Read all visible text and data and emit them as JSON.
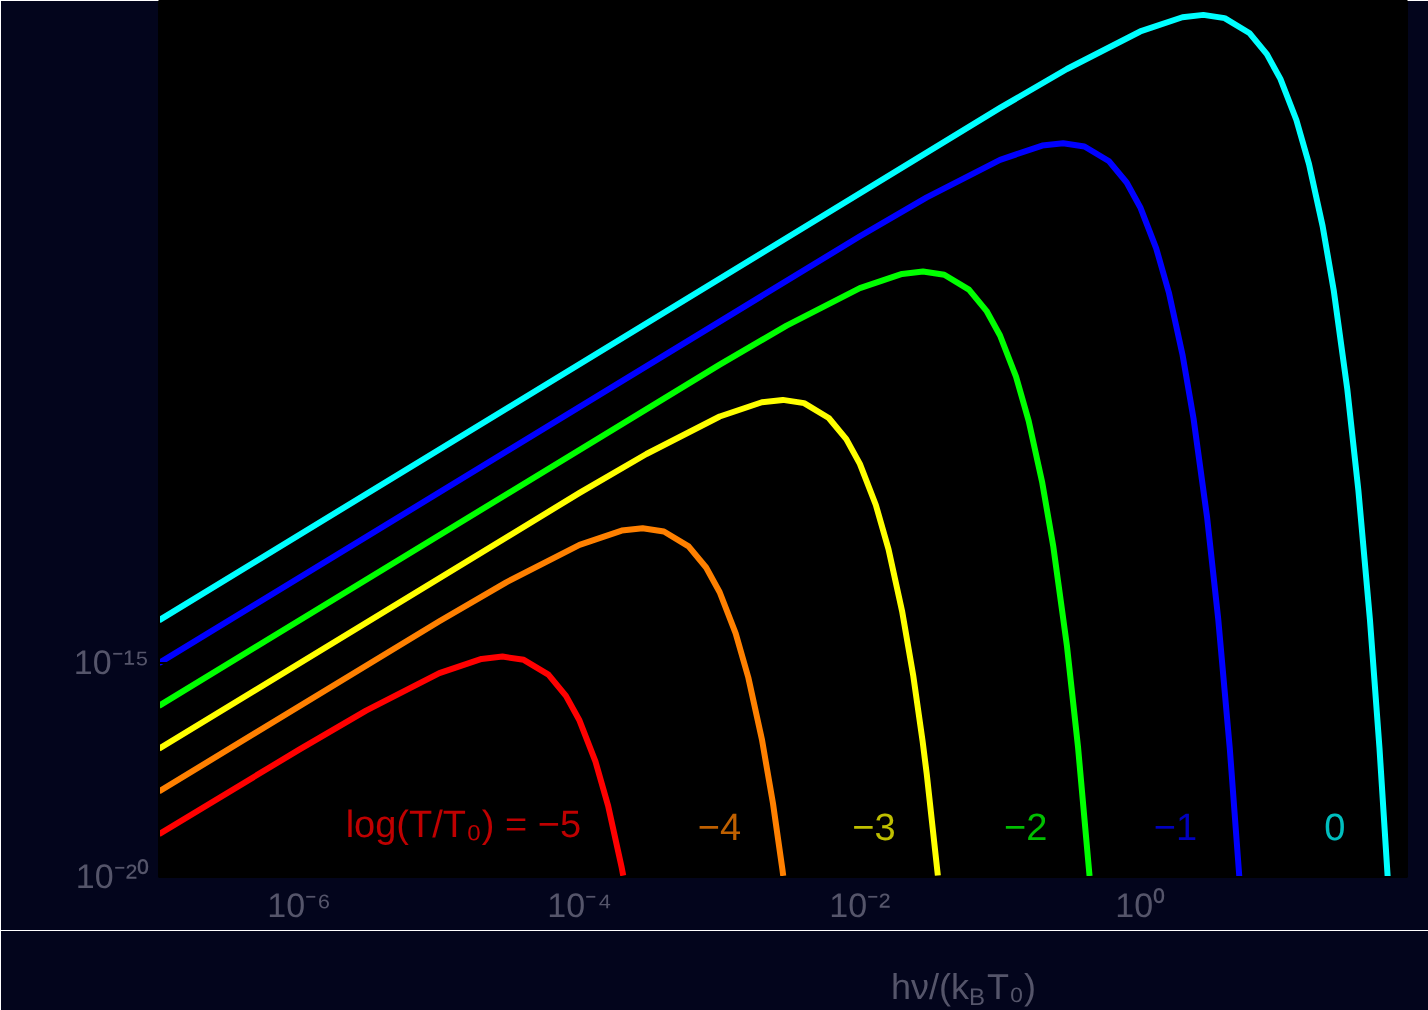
{
  "chart_data": {
    "type": "line",
    "xlabel": "hν/(k$_{B}$T₀)",
    "log": "xy",
    "legend": false,
    "grid": false,
    "marker": "none",
    "line_style": "solid",
    "xlim": [
      1e-07,
      80
    ],
    "ylim": [
      1e-20,
      3
    ],
    "xticks": [
      {
        "value": 1e-06,
        "label": "10⁻⁶"
      },
      {
        "value": 1e-05,
        "label": null
      },
      {
        "value": 0.0001,
        "label": "10⁻⁴"
      },
      {
        "value": 0.001,
        "label": null
      },
      {
        "value": 0.01,
        "label": "10⁻²"
      },
      {
        "value": 0.1,
        "label": null
      },
      {
        "value": 1,
        "label": "10⁰"
      },
      {
        "value": 10,
        "label": null
      }
    ],
    "yticks": [
      {
        "value": 1e-20,
        "label": "10⁻²⁰"
      },
      {
        "value": 1e-15,
        "label": "10⁻¹⁵"
      }
    ],
    "series": [
      {
        "name": "log(T/T₀) = −5",
        "color": "#ff0000",
        "x": [
          1e-07,
          1e-06,
          3e-06,
          1e-05,
          2e-05,
          2.82e-05,
          4e-05,
          6e-05,
          8e-05,
          0.0001,
          0.00013,
          0.00016,
          0.0002,
          0.000205
        ],
        "values": [
          1e-19,
          9.51e-18,
          7.72e-17,
          5.82e-16,
          1.252e-15,
          1.421e-15,
          1.194e-15,
          5.37e-16,
          1.718e-16,
          4.54e-17,
          4.966e-18,
          4.61e-19,
          1.65e-20,
          1.078e-20
        ]
      },
      {
        "name": "−4",
        "color": "#ff8000",
        "x": [
          1e-07,
          1e-05,
          3e-05,
          0.0001,
          0.0002,
          0.000282,
          0.0004,
          0.0006,
          0.0008,
          0.001,
          0.0013,
          0.0016,
          0.002,
          0.0024,
          0.0028,
          0.00284
        ],
        "values": [
          1e-18,
          9.51e-15,
          7.72e-14,
          5.82e-13,
          1.252e-12,
          1.421e-12,
          1.194e-12,
          5.37e-13,
          1.718e-13,
          4.54e-14,
          4.966e-15,
          4.61e-16,
          1.65e-17,
          5.22e-19,
          1.52e-20,
          1.06e-20
        ]
      },
      {
        "name": "−3",
        "color": "#ffff00",
        "x": [
          1e-07,
          0.0001,
          0.0003,
          0.001,
          0.002,
          0.00282,
          0.004,
          0.006,
          0.008,
          0.01,
          0.013,
          0.016,
          0.02,
          0.024,
          0.028,
          0.03,
          0.036
        ],
        "values": [
          1e-17,
          9.51e-12,
          7.72e-11,
          5.82e-10,
          1.252e-09,
          1.421e-09,
          1.194e-09,
          5.37e-10,
          1.718e-10,
          4.54e-11,
          4.966e-12,
          4.61e-13,
          1.65e-14,
          5.22e-16,
          1.52e-17,
          2.53e-18,
          1.082e-20
        ]
      },
      {
        "name": "−2",
        "color": "#00ff00",
        "x": [
          1e-07,
          0.001,
          0.003,
          0.01,
          0.02,
          0.0282,
          0.04,
          0.06,
          0.08,
          0.1,
          0.13,
          0.16,
          0.2,
          0.24,
          0.3,
          0.36,
          0.435
        ],
        "values": [
          1e-16,
          9.51e-09,
          7.72e-08,
          5.82e-07,
          1.252e-06,
          1.421e-06,
          1.194e-06,
          5.37e-07,
          1.718e-07,
          4.54e-08,
          4.966e-09,
          4.61e-10,
          1.65e-11,
          5.22e-13,
          2.53e-15,
          1.082e-17,
          1.056e-20
        ]
      },
      {
        "name": "−1",
        "color": "#0000ff",
        "x": [
          1e-07,
          0.01,
          0.03,
          0.1,
          0.2,
          0.282,
          0.4,
          0.6,
          0.8,
          1,
          1.3,
          1.6,
          2,
          2.4,
          3,
          3.6,
          4.35,
          5.09
        ],
        "values": [
          1e-15,
          9.51e-06,
          7.72e-05,
          0.000582,
          0.001252,
          0.001421,
          0.001194,
          0.000537,
          0.0001718,
          4.54e-05,
          4.966e-06,
          4.61e-07,
          1.65e-08,
          5.22e-10,
          2.53e-12,
          1.082e-14,
          1.056e-17,
          1.034e-20
        ]
      },
      {
        "name": "0",
        "color": "#00ffff",
        "x": [
          1e-07,
          0.1,
          0.3,
          1,
          2,
          2.82,
          4,
          6,
          8,
          10,
          13,
          16,
          20,
          24,
          30,
          36,
          43.5,
          50.9,
          58.2
        ],
        "values": [
          1e-14,
          0.00951,
          0.0772,
          0.582,
          1.252,
          1.421,
          1.194,
          0.537,
          0.1718,
          0.0454,
          0.004966,
          0.000461,
          1.65e-05,
          5.22e-07,
          2.53e-09,
          1.082e-11,
          1.056e-14,
          1.034e-17,
          1.044e-20
        ]
      }
    ]
  }
}
